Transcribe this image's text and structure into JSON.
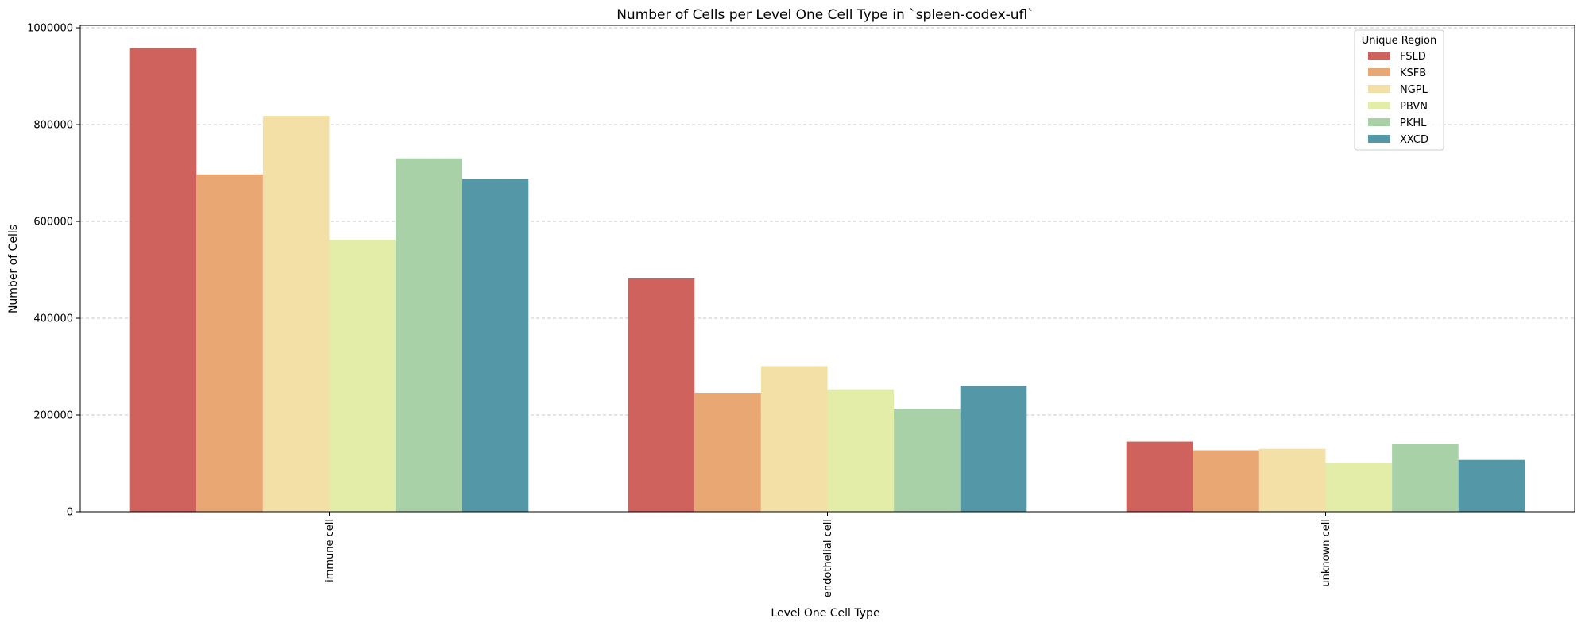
{
  "chart_data": {
    "type": "bar",
    "title": "Number of Cells per Level One Cell Type in `spleen-codex-ufl`",
    "xlabel": "Level One Cell Type",
    "ylabel": "Number of Cells",
    "categories": [
      "immune cell",
      "endothelial cell",
      "unknown cell"
    ],
    "ylim": [
      0,
      1005000
    ],
    "yticks": [
      0,
      200000,
      400000,
      600000,
      800000,
      1000000
    ],
    "ytick_labels": [
      "0",
      "200000",
      "400000",
      "600000",
      "800000",
      "1000000"
    ],
    "grid": "horizontal-dashed",
    "legend": {
      "title": "Unique Region",
      "placement": "top-right"
    },
    "series": [
      {
        "name": "FSLD",
        "color": "#d0625e",
        "values": [
          958000,
          482000,
          145000
        ]
      },
      {
        "name": "KSFB",
        "color": "#e9a773",
        "values": [
          697000,
          246000,
          127000
        ]
      },
      {
        "name": "NGPL",
        "color": "#f2e0a6",
        "values": [
          818000,
          301000,
          130000
        ]
      },
      {
        "name": "PBVN",
        "color": "#e3eda8",
        "values": [
          562000,
          253000,
          101000
        ]
      },
      {
        "name": "PKHL",
        "color": "#a9d1a7",
        "values": [
          730000,
          213000,
          140000
        ]
      },
      {
        "name": "XXCD",
        "color": "#5498a8",
        "values": [
          688000,
          260000,
          107000
        ]
      }
    ]
  }
}
